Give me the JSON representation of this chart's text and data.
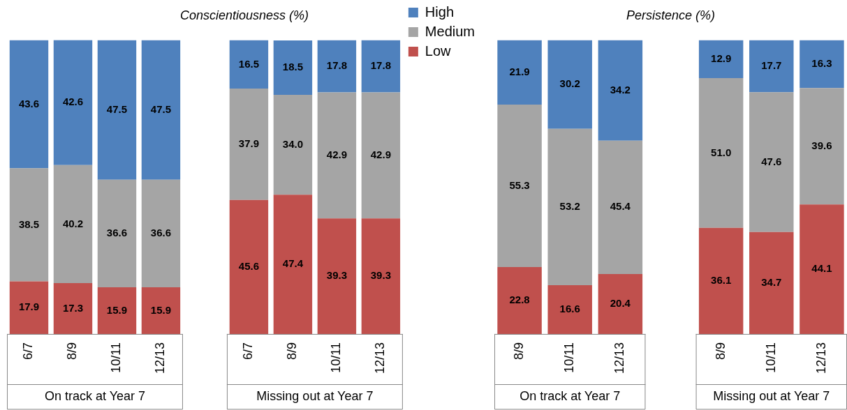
{
  "chart_data": [
    {
      "type": "bar",
      "title": "Conscientiousness (%)",
      "categories": [
        "6/7",
        "8/9",
        "10/11",
        "12/13",
        null,
        "6/7",
        "8/9",
        "10/11",
        "12/13"
      ],
      "stacked": true,
      "data_labels": true,
      "grid": false,
      "legend": "right",
      "tick_labels": "x",
      "ylim": [
        0,
        100
      ],
      "series": [
        {
          "name": "Low",
          "color": "#c0504d",
          "values": [
            17.9,
            17.3,
            15.9,
            15.9,
            null,
            45.6,
            47.4,
            39.3,
            39.3
          ]
        },
        {
          "name": "Medium",
          "color": "#a5a5a5",
          "values": [
            38.5,
            40.2,
            36.6,
            36.6,
            null,
            37.9,
            34.0,
            42.9,
            42.9
          ],
          "value_labels": [
            "38.5",
            "40.2",
            "36.6",
            "36.6",
            null,
            "37.9",
            "34.0",
            "42.9",
            "42.9"
          ]
        },
        {
          "name": "High",
          "color": "#4f81bd",
          "values": [
            43.6,
            42.6,
            47.5,
            47.5,
            null,
            16.5,
            18.5,
            17.8,
            17.8
          ]
        }
      ],
      "annotations": [
        "On track at Year 7",
        "Missing out at Year 7"
      ]
    },
    {
      "type": "bar",
      "title": "Persistence (%)",
      "categories": [
        "8/9",
        "10/11",
        "12/13",
        null,
        "8/9",
        "10/11",
        "12/13"
      ],
      "stacked": true,
      "data_labels": true,
      "grid": false,
      "legend": false,
      "tick_labels": "x",
      "ylim": [
        0,
        100
      ],
      "series": [
        {
          "color": "#c0504d",
          "values": [
            22.8,
            16.6,
            20.4,
            null,
            36.1,
            34.7,
            44.1
          ]
        },
        {
          "color": "#a5a5a5",
          "values": [
            55.3,
            53.2,
            45.4,
            null,
            51.0,
            47.6,
            39.6
          ],
          "value_labels": [
            "55.3",
            "53.2",
            "45.4",
            null,
            "51.0",
            "47.6",
            "39.6"
          ]
        },
        {
          "color": "#4f81bd",
          "values": [
            21.9,
            30.2,
            34.2,
            null,
            12.9,
            17.7,
            16.3
          ]
        }
      ],
      "annotations": [
        "On track at Year 7",
        "Missing out at Year 7"
      ]
    }
  ]
}
